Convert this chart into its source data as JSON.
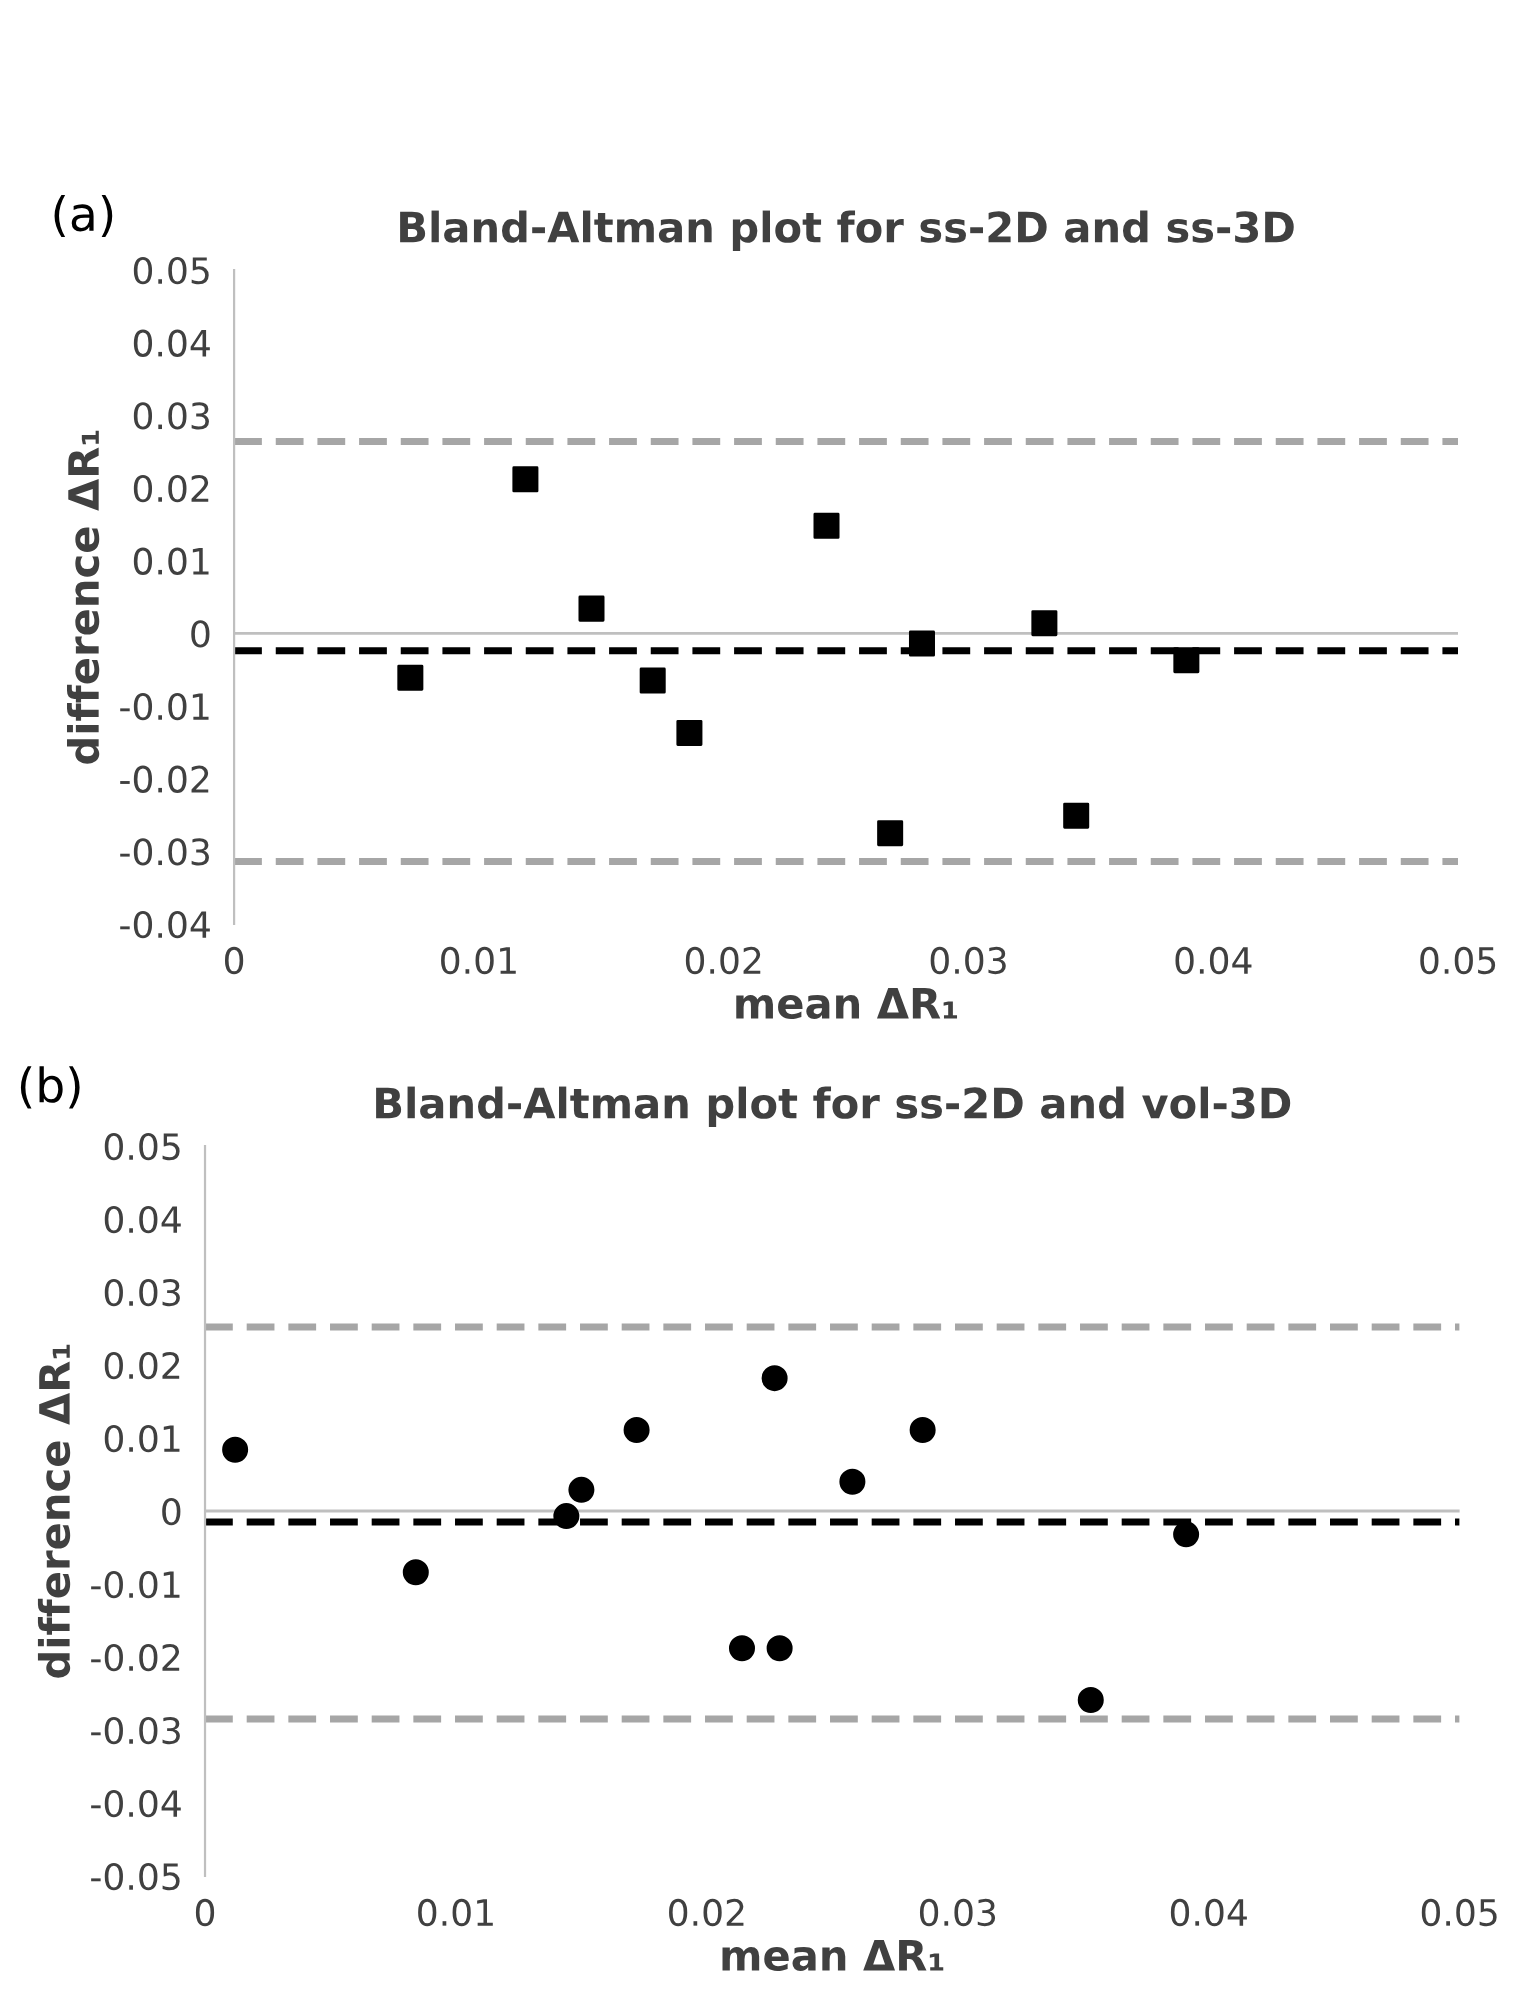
{
  "chart_data": [
    {
      "type": "scatter",
      "title": "Bland-Altman plot for ss-2D and ss-3D",
      "xlabel": "mean ΔR₁",
      "ylabel": "difference ΔR₁",
      "annotations": [
        "(a)"
      ],
      "x": [
        0.0072,
        0.0119,
        0.0146,
        0.0171,
        0.0186,
        0.0242,
        0.0268,
        0.0281,
        0.0331,
        0.0344,
        0.0389
      ],
      "series": [
        {
          "color": "#000000",
          "values": [
            -0.0061,
            0.0212,
            0.0034,
            -0.0065,
            -0.0137,
            0.0148,
            -0.0275,
            -0.0014,
            0.0014,
            -0.0251,
            -0.0037
          ]
        }
      ],
      "marker": "square",
      "xlim": [
        0,
        0.05
      ],
      "xticks": [
        0,
        0.01,
        0.02,
        0.03,
        0.04,
        0.05
      ],
      "ylim": [
        -0.04,
        0.05
      ],
      "yticks": [
        -0.04,
        -0.03,
        -0.02,
        -0.01,
        0,
        0.01,
        0.02,
        0.03,
        0.04,
        0.05
      ],
      "grid": false,
      "legend": false,
      "ref_lines": [
        {
          "axis": "y",
          "value": 0,
          "color": "#bfbfbf",
          "line_style": "solid"
        },
        {
          "axis": "y",
          "value": 0.0264,
          "color": "#a6a6a6",
          "line_style": "dashed"
        },
        {
          "axis": "y",
          "value": -0.0024,
          "color": "#000000",
          "line_style": "dashed"
        },
        {
          "axis": "y",
          "value": -0.0314,
          "color": "#a6a6a6",
          "line_style": "dashed"
        }
      ]
    },
    {
      "type": "scatter",
      "title": "Bland-Altman plot for ss-2D and vol-3D",
      "xlabel": "mean ΔR₁",
      "ylabel": "difference ΔR₁",
      "annotations": [
        "(b)"
      ],
      "x": [
        0.0012,
        0.0084,
        0.0144,
        0.015,
        0.0172,
        0.0214,
        0.0227,
        0.0229,
        0.0258,
        0.0286,
        0.0353,
        0.0391
      ],
      "series": [
        {
          "color": "#000000",
          "values": [
            0.0084,
            -0.0084,
            -0.0007,
            0.0029,
            0.0111,
            -0.0188,
            0.0182,
            -0.0188,
            0.004,
            0.0111,
            -0.0259,
            -0.0032
          ]
        }
      ],
      "marker": "circle",
      "xlim": [
        0,
        0.05
      ],
      "xticks": [
        0,
        0.01,
        0.02,
        0.03,
        0.04,
        0.05
      ],
      "ylim": [
        -0.05,
        0.05
      ],
      "yticks": [
        -0.05,
        -0.04,
        -0.03,
        -0.02,
        -0.01,
        0,
        0.01,
        0.02,
        0.03,
        0.04,
        0.05
      ],
      "grid": false,
      "legend": false,
      "ref_lines": [
        {
          "axis": "y",
          "value": 0,
          "color": "#bfbfbf",
          "line_style": "solid"
        },
        {
          "axis": "y",
          "value": 0.0252,
          "color": "#a6a6a6",
          "line_style": "dashed"
        },
        {
          "axis": "y",
          "value": -0.0015,
          "color": "#000000",
          "line_style": "dashed"
        },
        {
          "axis": "y",
          "value": -0.0285,
          "color": "#a6a6a6",
          "line_style": "dashed"
        }
      ]
    }
  ]
}
